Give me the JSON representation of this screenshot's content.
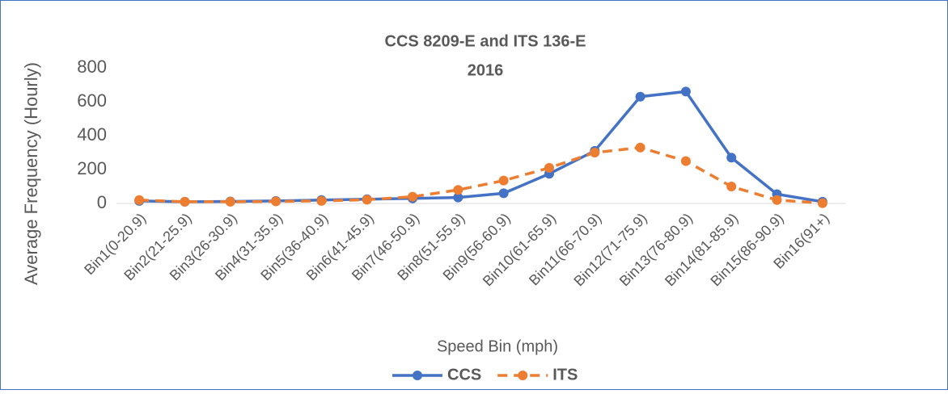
{
  "chart_data": {
    "type": "line",
    "title": "CCS 8209-E and ITS 136-E",
    "subtitle": "2016",
    "x_label": "Speed Bin (mph)",
    "y_label": "Average Frequency (Hourly)",
    "categories": [
      "Bin1(0-20.9)",
      "Bin2(21-25.9)",
      "Bin3(26-30.9)",
      "Bin4(31-35.9)",
      "Bin5(36-40.9)",
      "Bin6(41-45.9)",
      "Bin7(46-50.9)",
      "Bin8(51-55.9)",
      "Bin9(56-60.9)",
      "Bin10(61-65.9)",
      "Bin11(66-70.9)",
      "Bin12(71-75.9)",
      "Bin13(76-80.9)",
      "Bin14(81-85.9)",
      "Bin15(86-90.9)",
      "Bin16(91+)"
    ],
    "series": [
      {
        "name": "CCS",
        "color": "#4472c4",
        "dashed": false,
        "values": [
          15,
          10,
          12,
          15,
          20,
          25,
          30,
          35,
          60,
          175,
          310,
          630,
          660,
          270,
          55,
          10
        ]
      },
      {
        "name": "ITS",
        "color": "#ed7d31",
        "dashed": true,
        "values": [
          20,
          10,
          10,
          12,
          15,
          22,
          40,
          80,
          135,
          210,
          300,
          330,
          250,
          100,
          20,
          2
        ]
      }
    ],
    "ylim": [
      0,
      800
    ],
    "yticks": [
      0,
      200,
      400,
      600,
      800
    ],
    "grid": false,
    "legend": "bottom"
  }
}
